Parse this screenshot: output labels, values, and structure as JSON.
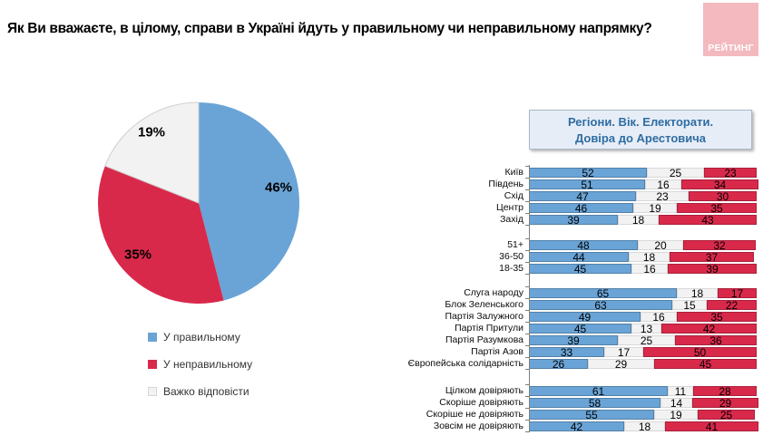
{
  "title": "Як Ви вважаєте, в цілому, справи в Україні йдуть у правильному чи неправильному напрямку?",
  "logo": {
    "text": "РЕЙТИНГ",
    "bg_color": "#F3B9BE",
    "text_color": "#FFFFFF"
  },
  "colors": {
    "right": "#6AA4D6",
    "wrong": "#D9294B",
    "neutral": "#F2F2F2"
  },
  "legend": {
    "items": [
      {
        "label": "У правильному",
        "color": "#6AA4D6"
      },
      {
        "label": "У неправильному",
        "color": "#D9294B"
      },
      {
        "label": "Важко відповісти",
        "color": "#F2F2F2"
      }
    ]
  },
  "panel_header": {
    "line1": "Регіони. Вік. Електорати.",
    "line2": "Довіра до Арестовича"
  },
  "chart_data": [
    {
      "type": "pie",
      "labels": [
        "У правильному",
        "У неправильному",
        "Важко відповісти"
      ],
      "values": [
        46,
        35,
        19
      ],
      "data_labels": [
        "46%",
        "35%",
        "19%"
      ],
      "colors": [
        "#6AA4D6",
        "#D9294B",
        "#F2F2F2"
      ],
      "start_angle": "12 o'clock, clockwise",
      "legend_position": "below"
    },
    {
      "type": "bar",
      "variant": "horizontal-stacked",
      "title": "Регіони. Вік. Електорати. Довіра до Арестовича",
      "series": [
        "У правильному",
        "Важко відповісти",
        "У неправильному"
      ],
      "series_colors": [
        "#6AA4D6",
        "#F2F2F2",
        "#D9294B"
      ],
      "xlim": [
        0,
        100
      ],
      "groups": [
        {
          "name": "Регіони",
          "rows": [
            {
              "label": "Київ",
              "values": [
                52,
                25,
                23
              ]
            },
            {
              "label": "Південь",
              "values": [
                51,
                16,
                34
              ]
            },
            {
              "label": "Схід",
              "values": [
                47,
                23,
                30
              ]
            },
            {
              "label": "Центр",
              "values": [
                46,
                19,
                35
              ]
            },
            {
              "label": "Захід",
              "values": [
                39,
                18,
                43
              ]
            }
          ]
        },
        {
          "name": "Вік",
          "rows": [
            {
              "label": "51+",
              "values": [
                48,
                20,
                32
              ]
            },
            {
              "label": "36-50",
              "values": [
                44,
                18,
                37
              ]
            },
            {
              "label": "18-35",
              "values": [
                45,
                16,
                39
              ]
            }
          ]
        },
        {
          "name": "Електорати",
          "rows": [
            {
              "label": "Слуга народу",
              "values": [
                65,
                18,
                17
              ]
            },
            {
              "label": "Блок Зеленського",
              "values": [
                63,
                15,
                22
              ]
            },
            {
              "label": "Партія Залужного",
              "values": [
                49,
                16,
                35
              ]
            },
            {
              "label": "Партія Притули",
              "values": [
                45,
                13,
                42
              ]
            },
            {
              "label": "Партія Разумкова",
              "values": [
                39,
                25,
                36
              ]
            },
            {
              "label": "Партія Азов",
              "values": [
                33,
                17,
                50
              ]
            },
            {
              "label": "Європейська солідарність",
              "values": [
                26,
                29,
                45
              ]
            }
          ]
        },
        {
          "name": "Довіра до Арестовича",
          "rows": [
            {
              "label": "Цілком довіряють",
              "values": [
                61,
                11,
                28
              ]
            },
            {
              "label": "Скоріше довіряють",
              "values": [
                58,
                14,
                29
              ]
            },
            {
              "label": "Скоріше не довіряють",
              "values": [
                55,
                19,
                25
              ]
            },
            {
              "label": "Зовсім не довіряють",
              "values": [
                42,
                18,
                41
              ]
            }
          ]
        }
      ]
    }
  ]
}
